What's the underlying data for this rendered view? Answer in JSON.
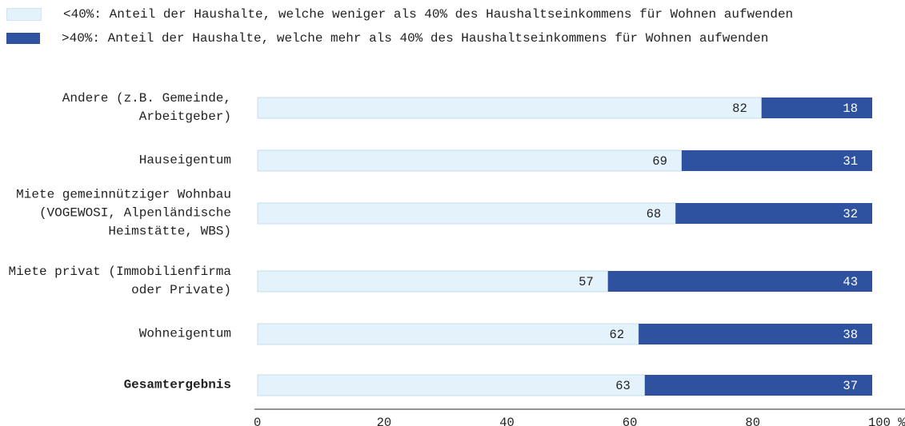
{
  "chart_data": {
    "type": "stacked-bar-horizontal",
    "categories": [
      "Andere (z.B. Gemeinde, Arbeitgeber)",
      "Hauseigentum",
      "Miete gemeinnütziger Wohnbau (VOGEWOSI, Alpenländische Heimstätte, WBS)",
      "Miete privat (Immobilienfirma oder Private)",
      "Wohneigentum",
      "Gesamtergebnis"
    ],
    "series": [
      {
        "name": "<40%: Anteil der Haushalte, welche weniger als 40% des Haushaltseinkommens für Wohnen aufwenden",
        "color": "#e4f2fc",
        "values": [
          82,
          69,
          68,
          57,
          62,
          63
        ]
      },
      {
        "name": ">40%: Anteil der Haushalte, welche mehr als 40% des Haushaltseinkommens für Wohnen aufwenden",
        "color": "#2f52a0",
        "values": [
          18,
          31,
          32,
          43,
          38,
          37
        ]
      }
    ],
    "xlim": [
      0,
      100
    ],
    "xticks": [
      0,
      20,
      40,
      60,
      80,
      {
        "value": 100,
        "label": "100 %"
      }
    ]
  }
}
